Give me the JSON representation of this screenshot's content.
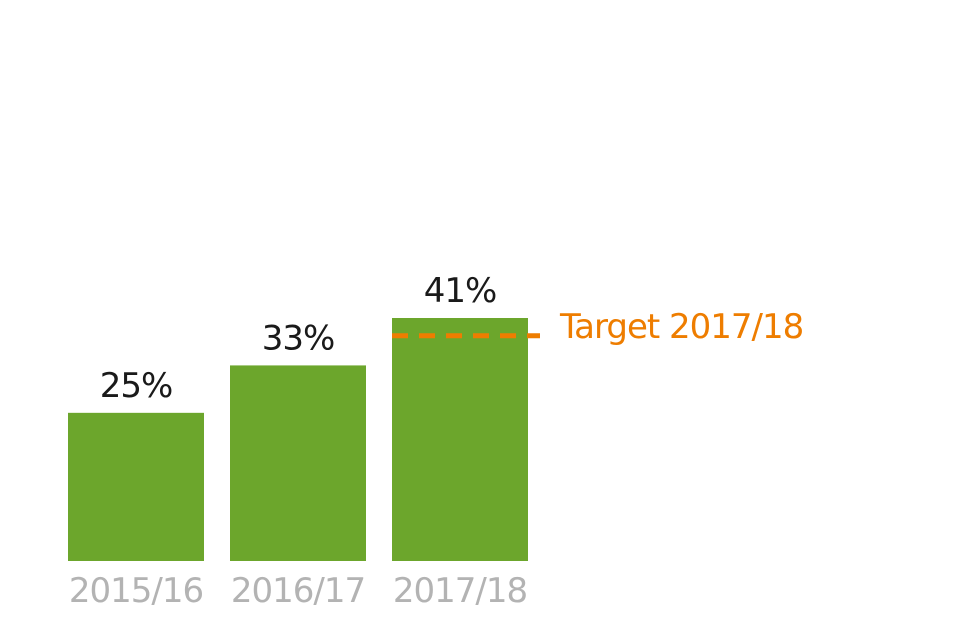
{
  "chart_data": {
    "type": "bar",
    "categories": [
      "2015/16",
      "2016/17",
      "2017/18"
    ],
    "values": [
      25,
      33,
      41
    ],
    "value_labels": [
      "25%",
      "33%",
      "41%"
    ],
    "title": "",
    "xlabel": "",
    "ylabel": "",
    "ylim": [
      0,
      41
    ],
    "grid": false,
    "bar_color": "#6ca62c",
    "target": {
      "label": "Target 2017/18",
      "value": 38,
      "category": "2017/18",
      "color": "#ee7d00"
    }
  }
}
